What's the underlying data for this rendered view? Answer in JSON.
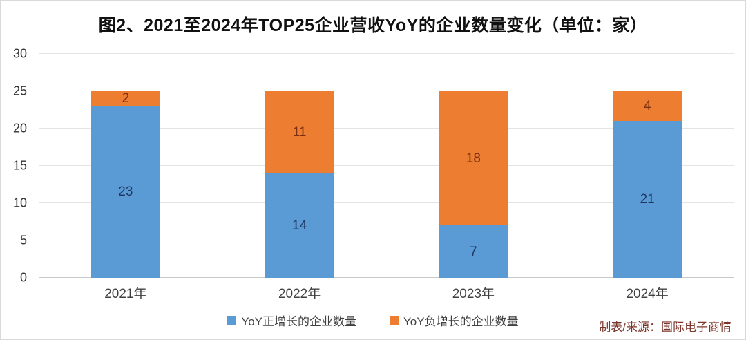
{
  "title": "图2、2021至2024年TOP25企业营收YoY的企业数量变化（单位：家）",
  "chart_data": {
    "type": "bar",
    "stacked": true,
    "title": "图2、2021至2024年TOP25企业营收YoY的企业数量变化（单位：家）",
    "categories": [
      "2021年",
      "2022年",
      "2023年",
      "2024年"
    ],
    "series": [
      {
        "name": "YoY正增长的企业数量",
        "color": "#5b9bd5",
        "label_color": "#1f3864",
        "values": [
          23,
          14,
          7,
          21
        ]
      },
      {
        "name": "YoY负增长的企业数量",
        "color": "#ed7d31",
        "label_color": "#7b2d12",
        "values": [
          2,
          11,
          18,
          4
        ]
      }
    ],
    "xlabel": "",
    "ylabel": "",
    "ylim": [
      0,
      30
    ],
    "ytick_step": 5,
    "yticks": [
      "0",
      "5",
      "10",
      "15",
      "20",
      "25",
      "30"
    ],
    "grid": true,
    "gridline_color": "#e4e4e4",
    "legend_position": "bottom"
  },
  "source_note": {
    "text": "制表/来源：国际电子商情",
    "color": "#7c352b"
  }
}
